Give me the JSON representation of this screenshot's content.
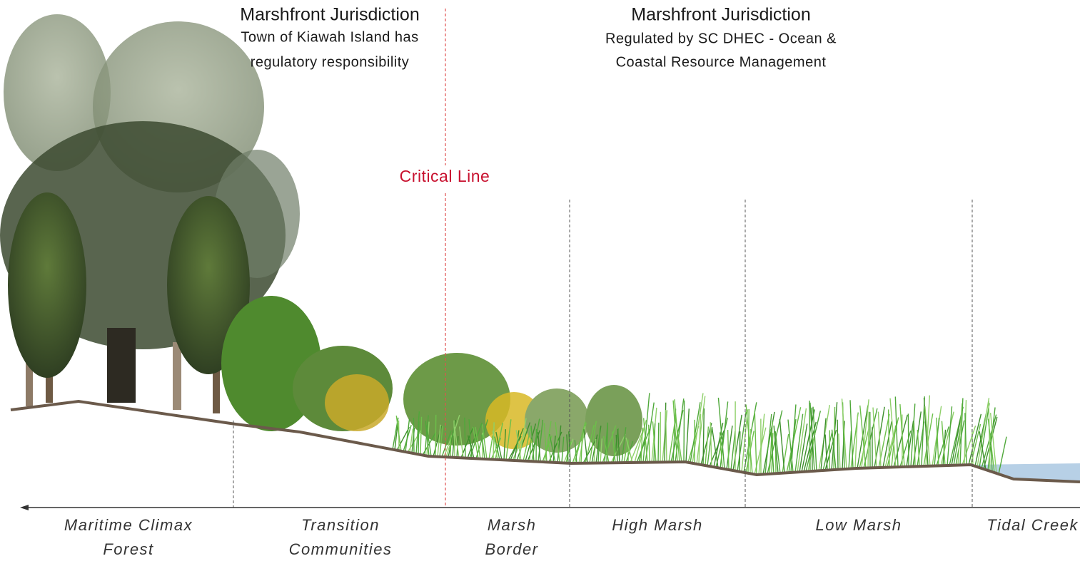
{
  "jurisdictions": [
    {
      "title": "Marshfront Jurisdiction",
      "description": [
        "Town of Kiawah Island has",
        "regulatory responsibility"
      ]
    },
    {
      "title": "Marshfront Jurisdiction",
      "description": [
        "Regulated by SC DHEC - Ocean &",
        "Coastal Resource Management"
      ]
    }
  ],
  "critical_line": "Critical Line",
  "zones": [
    {
      "label": [
        "Maritime Climax",
        "Forest"
      ]
    },
    {
      "label": [
        "Transition",
        "Communities"
      ]
    },
    {
      "label": [
        "Marsh",
        "Border"
      ]
    },
    {
      "label": [
        "High Marsh"
      ]
    },
    {
      "label": [
        "Low Marsh"
      ]
    },
    {
      "label": [
        "Tidal Creek"
      ]
    }
  ]
}
